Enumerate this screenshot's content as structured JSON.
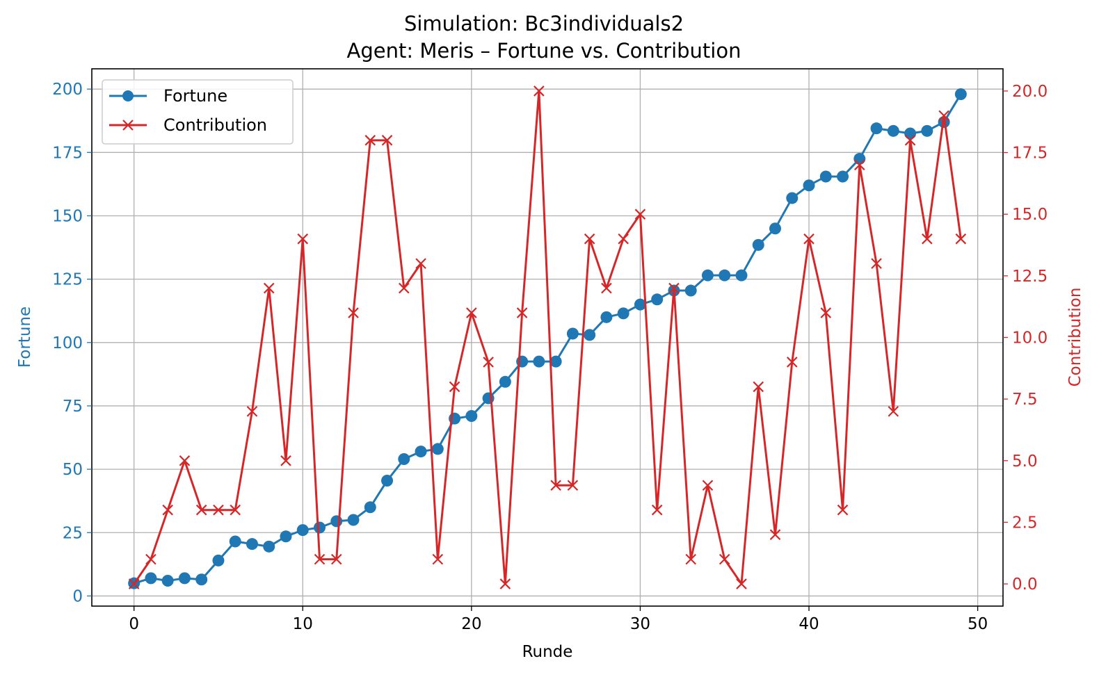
{
  "chart_data": {
    "type": "line",
    "title": "Simulation: Bc3individuals2",
    "subtitle": "Agent: Meris – Fortune vs. Contribution",
    "xlabel": "Runde",
    "ylabel_left": "Fortune",
    "ylabel_right": "Contribution",
    "xlim": [
      -2.5,
      51.5
    ],
    "ylim_left": [
      -4,
      208
    ],
    "ylim_right": [
      -0.9,
      20.9
    ],
    "xticks": [
      0,
      10,
      20,
      30,
      40,
      50
    ],
    "yticks_left": [
      0,
      25,
      50,
      75,
      100,
      125,
      150,
      175,
      200
    ],
    "yticks_right": [
      "0.0",
      "2.5",
      "5.0",
      "7.5",
      "10.0",
      "12.5",
      "15.0",
      "17.5",
      "20.0"
    ],
    "grid": true,
    "legend_position": "top-left",
    "x": [
      0,
      1,
      2,
      3,
      4,
      5,
      6,
      7,
      8,
      9,
      10,
      11,
      12,
      13,
      14,
      15,
      16,
      17,
      18,
      19,
      20,
      21,
      22,
      23,
      24,
      25,
      26,
      27,
      28,
      29,
      30,
      31,
      32,
      33,
      34,
      35,
      36,
      37,
      38,
      39,
      40,
      41,
      42,
      43,
      44,
      45,
      46,
      47,
      48,
      49
    ],
    "series": [
      {
        "name": "Fortune",
        "axis": "left",
        "color": "#1f77b4",
        "marker": "circle",
        "values": [
          5,
          7,
          6,
          7,
          6.5,
          14,
          21.5,
          20.5,
          19.5,
          23.5,
          26,
          27,
          29.5,
          30,
          35,
          45.5,
          54,
          57,
          58,
          70,
          71,
          78,
          84.5,
          92.5,
          92.5,
          92.5,
          103.5,
          103,
          110,
          111.5,
          115,
          117,
          120.5,
          120.5,
          126.5,
          126.5,
          126.5,
          138.5,
          145,
          157,
          162,
          165.5,
          165.5,
          172.5,
          184.5,
          183.5,
          182.5,
          183.5,
          187,
          198
        ]
      },
      {
        "name": "Contribution",
        "axis": "right",
        "color": "#d62728",
        "marker": "x",
        "values": [
          0,
          1,
          3,
          5,
          3,
          3,
          3,
          7,
          12,
          5,
          14,
          1,
          1,
          11,
          18,
          18,
          12,
          13,
          1,
          8,
          11,
          9,
          0,
          11,
          20,
          4,
          4,
          14,
          12,
          14,
          15,
          3,
          12,
          1,
          4,
          1,
          0,
          8,
          2,
          9,
          14,
          11,
          3,
          17,
          13,
          7,
          18,
          14,
          19,
          14
        ]
      }
    ]
  }
}
